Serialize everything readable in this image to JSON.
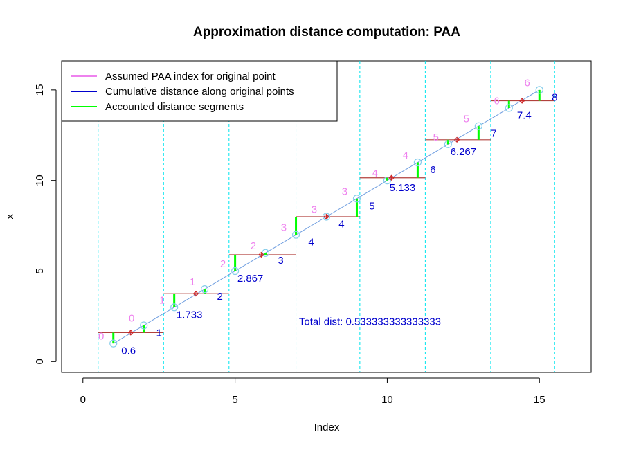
{
  "chart_data": {
    "type": "line",
    "title": "Approximation distance computation: PAA",
    "xlabel": "Index",
    "ylabel": "x",
    "xlim": [
      -0.7,
      16.7
    ],
    "ylim": [
      -0.6,
      16.6
    ],
    "xticks": [
      0,
      5,
      10,
      15
    ],
    "yticks": [
      0,
      5,
      10,
      15
    ],
    "series_points": {
      "x": [
        1,
        2,
        3,
        4,
        5,
        6,
        7,
        8,
        9,
        10,
        11,
        12,
        13,
        14,
        15
      ],
      "y": [
        1,
        2,
        3,
        4,
        5,
        6,
        7,
        8,
        9,
        10,
        11,
        12,
        13,
        14,
        15
      ]
    },
    "paa_segments": [
      {
        "x0": 0.5,
        "x1": 2.65,
        "value": 1.6
      },
      {
        "x0": 2.65,
        "x1": 4.8,
        "value": 3.75
      },
      {
        "x0": 4.8,
        "x1": 7.0,
        "value": 5.9
      },
      {
        "x0": 7.0,
        "x1": 9.1,
        "value": 8.0
      },
      {
        "x0": 9.1,
        "x1": 11.25,
        "value": 10.15
      },
      {
        "x0": 11.25,
        "x1": 13.4,
        "value": 12.25
      },
      {
        "x0": 13.4,
        "x1": 15.5,
        "value": 14.4
      }
    ],
    "segment_boundaries": [
      0.5,
      2.65,
      4.8,
      7.0,
      9.1,
      11.25,
      13.4,
      15.5
    ],
    "paa_centers": [
      1.57,
      3.71,
      5.86,
      8.0,
      10.14,
      12.29,
      14.43
    ],
    "assumed_index_labels": [
      {
        "x": 0.6,
        "y": 1.4,
        "text": "0"
      },
      {
        "x": 1.6,
        "y": 2.4,
        "text": "0"
      },
      {
        "x": 2.6,
        "y": 3.4,
        "text": "1"
      },
      {
        "x": 3.6,
        "y": 4.4,
        "text": "1"
      },
      {
        "x": 4.6,
        "y": 5.4,
        "text": "2"
      },
      {
        "x": 5.6,
        "y": 6.4,
        "text": "2"
      },
      {
        "x": 6.6,
        "y": 7.4,
        "text": "3"
      },
      {
        "x": 7.6,
        "y": 8.4,
        "text": "3"
      },
      {
        "x": 8.6,
        "y": 9.4,
        "text": "3"
      },
      {
        "x": 9.6,
        "y": 10.4,
        "text": "4"
      },
      {
        "x": 10.6,
        "y": 11.4,
        "text": "4"
      },
      {
        "x": 11.6,
        "y": 12.4,
        "text": "5"
      },
      {
        "x": 12.6,
        "y": 13.4,
        "text": "5"
      },
      {
        "x": 13.6,
        "y": 14.4,
        "text": "6"
      },
      {
        "x": 14.6,
        "y": 15.4,
        "text": "6"
      }
    ],
    "cumulative_distance_labels": [
      {
        "x": 1.5,
        "y": 0.6,
        "text": "0.6"
      },
      {
        "x": 2.5,
        "y": 1.6,
        "text": "1"
      },
      {
        "x": 3.5,
        "y": 2.6,
        "text": "1.733"
      },
      {
        "x": 4.5,
        "y": 3.6,
        "text": "2"
      },
      {
        "x": 5.5,
        "y": 4.6,
        "text": "2.867"
      },
      {
        "x": 6.5,
        "y": 5.6,
        "text": "3"
      },
      {
        "x": 7.5,
        "y": 6.6,
        "text": "4"
      },
      {
        "x": 8.5,
        "y": 7.6,
        "text": "4"
      },
      {
        "x": 9.5,
        "y": 8.6,
        "text": "5"
      },
      {
        "x": 10.5,
        "y": 9.6,
        "text": "5.133"
      },
      {
        "x": 11.5,
        "y": 10.6,
        "text": "6"
      },
      {
        "x": 12.5,
        "y": 11.6,
        "text": "6.267"
      },
      {
        "x": 13.5,
        "y": 12.6,
        "text": "7"
      },
      {
        "x": 14.5,
        "y": 13.6,
        "text": "7.4"
      },
      {
        "x": 15.5,
        "y": 14.6,
        "text": "8"
      }
    ],
    "accounted_segments": [
      {
        "x": 1,
        "from": 1.6,
        "to": 1.0
      },
      {
        "x": 2,
        "from": 1.6,
        "to": 2.0
      },
      {
        "x": 3,
        "from": 3.75,
        "to": 3.0
      },
      {
        "x": 4,
        "from": 3.75,
        "to": 4.0
      },
      {
        "x": 5,
        "from": 5.9,
        "to": 5.0
      },
      {
        "x": 6,
        "from": 5.9,
        "to": 6.0
      },
      {
        "x": 7,
        "from": 8.0,
        "to": 7.0
      },
      {
        "x": 9,
        "from": 8.0,
        "to": 9.0
      },
      {
        "x": 10,
        "from": 10.15,
        "to": 10.0
      },
      {
        "x": 11,
        "from": 10.15,
        "to": 11.0
      },
      {
        "x": 12,
        "from": 12.25,
        "to": 12.0
      },
      {
        "x": 13,
        "from": 12.25,
        "to": 13.0
      },
      {
        "x": 14,
        "from": 14.4,
        "to": 14.0
      },
      {
        "x": 15,
        "from": 14.4,
        "to": 15.0
      }
    ],
    "total_distance": {
      "x": 7.1,
      "y": 2.2,
      "text": "Total dist: 0.533333333333333"
    },
    "legend": {
      "position": "top-left",
      "entries": [
        {
          "label": "Assumed PAA index for original point",
          "color": "#ee82ee"
        },
        {
          "label": "Cumulative distance along original points",
          "color": "#0000cd"
        },
        {
          "label": "Accounted distance segments",
          "color": "#00ff00"
        }
      ]
    },
    "colors": {
      "series_line": "#6f9ee0",
      "point_marker": "#87ceeb",
      "paa_segment": "#b2413d",
      "boundary": "#00e5ee",
      "assumed_index": "#ee82ee",
      "cumulative": "#0000cd",
      "accounted": "#00ff00",
      "center_marker": "#cd2626"
    }
  }
}
